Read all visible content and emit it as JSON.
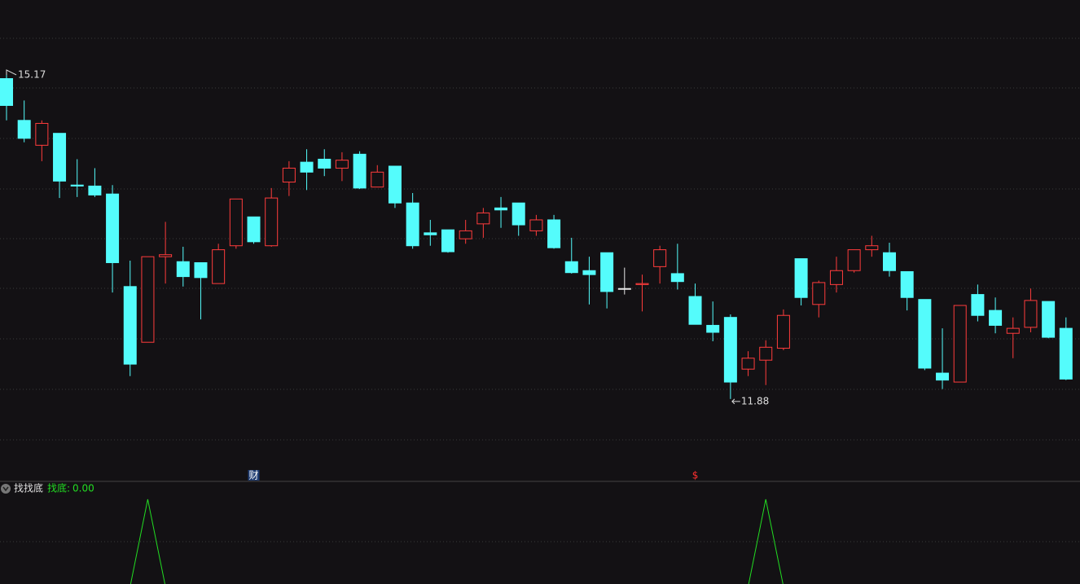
{
  "chart_data": {
    "type": "candlestick",
    "ylim": [
      11.06,
      15.89
    ],
    "colors": {
      "up": "#ff3c3c",
      "down": "#54fcfc",
      "flat": "#e8e8e8"
    },
    "series": [
      {
        "open": [
          15.1,
          14.68,
          14.43,
          14.55,
          14.03,
          14.02,
          13.94,
          13.01,
          12.45,
          13.31,
          13.26,
          13.25,
          13.04,
          13.42,
          13.71,
          13.42,
          14.06,
          14.26,
          14.29,
          14.2,
          14.34,
          14.01,
          14.22,
          13.85,
          13.55,
          13.58,
          13.49,
          13.64,
          13.8,
          13.85,
          13.57,
          13.68,
          13.26,
          13.17,
          13.35,
          12.99,
          13.03,
          13.21,
          13.14,
          12.91,
          12.62,
          12.7,
          12.18,
          12.27,
          12.39,
          13.29,
          12.83,
          13.03,
          13.17,
          13.38,
          13.35,
          13.16,
          12.88,
          12.14,
          12.05,
          12.93,
          12.77,
          12.54,
          12.6,
          12.86,
          12.59
        ],
        "high": [
          15.17,
          14.88,
          14.68,
          14.55,
          14.29,
          14.2,
          14.03,
          13.27,
          13.31,
          13.66,
          13.41,
          13.25,
          13.44,
          13.89,
          13.71,
          14.0,
          14.27,
          14.39,
          14.39,
          14.36,
          14.37,
          14.23,
          14.22,
          13.95,
          13.68,
          13.58,
          13.68,
          13.8,
          13.91,
          13.85,
          13.73,
          13.73,
          13.5,
          13.31,
          13.35,
          13.2,
          13.13,
          13.42,
          13.44,
          13.04,
          12.86,
          12.73,
          12.36,
          12.47,
          12.78,
          13.29,
          13.07,
          13.31,
          13.38,
          13.52,
          13.45,
          13.16,
          12.88,
          12.59,
          12.82,
          13.03,
          12.9,
          12.7,
          12.99,
          12.86,
          12.7
        ],
        "low": [
          14.68,
          14.46,
          14.27,
          13.9,
          13.91,
          13.91,
          12.95,
          12.11,
          12.45,
          13.04,
          13.01,
          12.68,
          13.04,
          13.39,
          13.44,
          13.41,
          13.92,
          13.98,
          14.12,
          14.07,
          13.99,
          14.01,
          13.8,
          13.39,
          13.42,
          13.35,
          13.44,
          13.5,
          13.6,
          13.52,
          13.52,
          13.39,
          13.14,
          12.83,
          12.79,
          12.93,
          12.76,
          13.04,
          12.98,
          12.63,
          12.46,
          11.88,
          12.11,
          12.02,
          12.37,
          12.82,
          12.7,
          12.95,
          13.15,
          13.31,
          13.11,
          12.77,
          12.17,
          11.98,
          12.05,
          12.66,
          12.54,
          12.29,
          12.55,
          12.49,
          12.07
        ],
        "close": [
          14.83,
          14.5,
          14.65,
          14.07,
          14.02,
          13.93,
          13.25,
          12.23,
          13.31,
          13.33,
          13.11,
          13.1,
          13.38,
          13.89,
          13.46,
          13.9,
          14.2,
          14.16,
          14.2,
          14.28,
          14.0,
          14.16,
          13.85,
          13.42,
          13.53,
          13.36,
          13.57,
          13.75,
          13.78,
          13.63,
          13.68,
          13.4,
          13.15,
          13.13,
          12.96,
          12.99,
          13.04,
          13.38,
          13.06,
          12.63,
          12.55,
          12.05,
          12.29,
          12.4,
          12.72,
          12.9,
          13.05,
          13.17,
          13.38,
          13.42,
          13.17,
          12.9,
          12.19,
          12.07,
          12.82,
          12.72,
          12.62,
          12.59,
          12.87,
          12.5,
          12.08
        ]
      }
    ],
    "markers": [
      {
        "text": "财",
        "candle": 14,
        "color": "#5aa0ff"
      },
      {
        "text": "$",
        "candle": 39,
        "color": "#ff3030"
      }
    ],
    "indicator": {
      "title": "找找底",
      "name": "找底:",
      "value_label": "0.00",
      "color": "#22dd22",
      "ylim": [
        0,
        1
      ],
      "values": [
        0,
        0,
        0,
        0,
        0,
        0,
        0,
        0,
        1,
        0,
        0,
        0,
        0,
        0,
        0,
        0,
        0,
        0,
        0,
        0,
        0,
        0,
        0,
        0,
        0,
        0,
        0,
        0,
        0,
        0,
        0,
        0,
        0,
        0,
        0,
        0,
        0,
        0,
        0,
        0,
        0,
        0,
        0,
        1,
        0,
        0,
        0,
        0,
        0,
        0,
        0,
        0,
        0,
        0,
        0,
        0,
        0,
        0,
        0,
        0,
        0
      ]
    }
  }
}
